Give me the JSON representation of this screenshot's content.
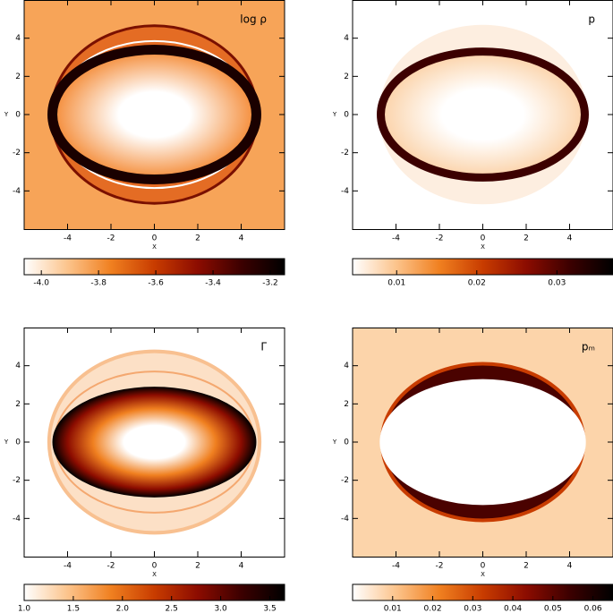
{
  "chart_data": [
    {
      "type": "heatmap",
      "label": "log ρ",
      "xlabel": "X",
      "ylabel": "Y",
      "xlim": [
        -6,
        6
      ],
      "ylim": [
        -6,
        6
      ],
      "xticks": [
        -4,
        -2,
        0,
        2,
        4
      ],
      "yticks": [
        -4,
        -2,
        0,
        2,
        4
      ],
      "colormap": [
        "#ffffff",
        "#fcc48c",
        "#f08020",
        "#c83c00",
        "#8c0c00",
        "#3c0000",
        "#000000"
      ],
      "colorbar": {
        "lim": [
          -4.06,
          -3.15
        ],
        "ticks": [
          {
            "value": -4,
            "label": "-4.0"
          },
          -3.8,
          -3.6,
          -3.4,
          -3.2
        ]
      }
    },
    {
      "type": "heatmap",
      "label": "p",
      "xlabel": "X",
      "ylabel": "Y",
      "xlim": [
        -6,
        6
      ],
      "ylim": [
        -6,
        6
      ],
      "xticks": [
        -4,
        -2,
        0,
        2,
        4
      ],
      "yticks": [
        -4,
        -2,
        0,
        2,
        4
      ],
      "colormap": [
        "#ffffff",
        "#fcc48c",
        "#f08020",
        "#c83c00",
        "#8c0c00",
        "#3c0000",
        "#000000"
      ],
      "colorbar": {
        "lim": [
          0.0045,
          0.037
        ],
        "ticks": [
          0.01,
          0.02,
          0.03
        ]
      }
    },
    {
      "type": "heatmap",
      "label": "Γ",
      "xlabel": "X",
      "ylabel": "Y",
      "xlim": [
        -6,
        6
      ],
      "ylim": [
        -6,
        6
      ],
      "xticks": [
        -4,
        -2,
        0,
        2,
        4
      ],
      "yticks": [
        -4,
        -2,
        0,
        2,
        4
      ],
      "colormap": [
        "#ffffff",
        "#fcc48c",
        "#f08020",
        "#c83c00",
        "#8c0c00",
        "#3c0000",
        "#000000"
      ],
      "colorbar": {
        "lim": [
          1.0,
          3.65
        ],
        "ticks": [
          {
            "value": 1,
            "label": "1.0"
          },
          1.5,
          {
            "value": 2,
            "label": "2.0"
          },
          2.5,
          {
            "value": 3,
            "label": "3.0"
          },
          3.5
        ]
      }
    },
    {
      "type": "heatmap",
      "label": "pₘ",
      "xlabel": "X",
      "ylabel": "Y",
      "xlim": [
        -6,
        6
      ],
      "ylim": [
        -6,
        6
      ],
      "xticks": [
        -4,
        -2,
        0,
        2,
        4
      ],
      "yticks": [
        -4,
        -2,
        0,
        2,
        4
      ],
      "colormap": [
        "#ffffff",
        "#fcc48c",
        "#f08020",
        "#c83c00",
        "#8c0c00",
        "#3c0000",
        "#000000"
      ],
      "colorbar": {
        "lim": [
          0,
          0.065
        ],
        "ticks": [
          0.01,
          0.02,
          0.03,
          0.04,
          0.05,
          0.06
        ]
      }
    }
  ]
}
